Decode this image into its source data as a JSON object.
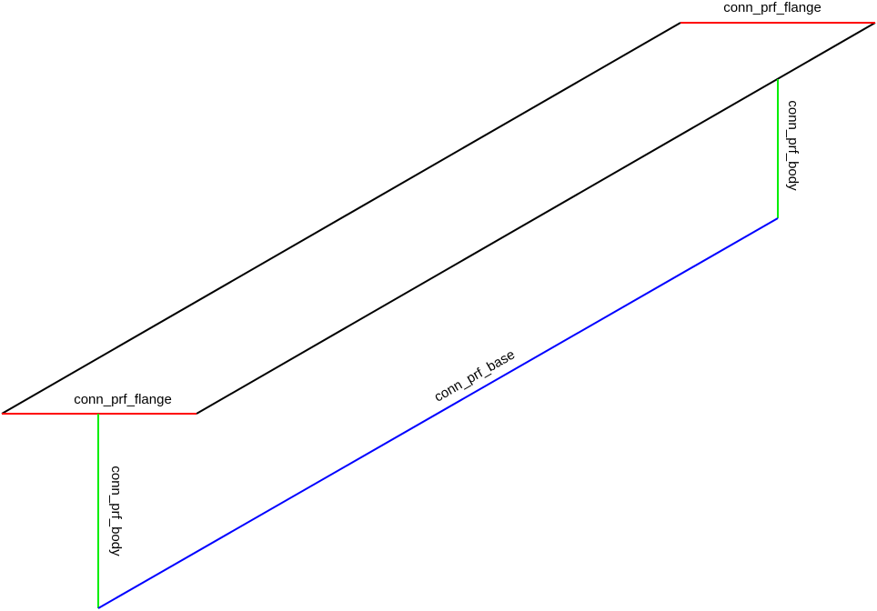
{
  "labels": {
    "top_flange": "conn_prf_flange",
    "top_body": "conn_prf_body",
    "base": "conn_prf_base",
    "bottom_flange": "conn_prf_flange",
    "bottom_body": "conn_prf_body"
  }
}
